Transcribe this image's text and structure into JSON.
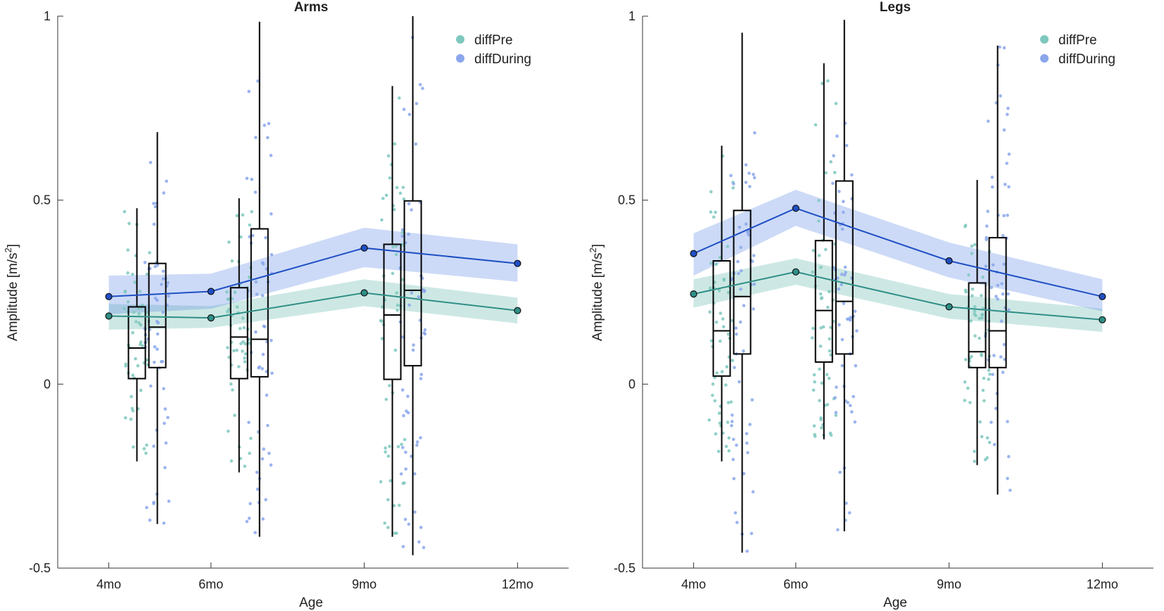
{
  "chart_data": [
    {
      "type": "line",
      "title": "Arms",
      "xlabel": "Age",
      "ylabel": "Amplitude [m/s²]",
      "ylabel_base": "Amplitude [m/s",
      "ylabel_sup": "2",
      "ylabel_close": "]",
      "categories": [
        "4mo",
        "6mo",
        "9mo",
        "12mo"
      ],
      "x": [
        4,
        6,
        9,
        12
      ],
      "xlim": [
        3,
        13
      ],
      "ylim": [
        -0.5,
        1
      ],
      "yticks": [
        -0.5,
        0,
        0.5,
        1
      ],
      "ytick_labels": [
        "-0.5",
        "0",
        "0.5",
        "1"
      ],
      "series": [
        {
          "name": "diffPre",
          "color": "#2f8f87",
          "values": [
            0.185,
            0.18,
            0.248,
            0.2
          ],
          "band_lower": [
            0.148,
            0.153,
            0.212,
            0.165
          ],
          "band_upper": [
            0.218,
            0.212,
            0.285,
            0.235
          ]
        },
        {
          "name": "diffDuring",
          "color": "#1f4fc4",
          "values": [
            0.238,
            0.252,
            0.37,
            0.328
          ],
          "band_lower": [
            0.19,
            0.205,
            0.318,
            0.278
          ],
          "band_upper": [
            0.295,
            0.3,
            0.425,
            0.38
          ]
        }
      ],
      "boxes": [
        {
          "x": 4.55,
          "group": "diffPre",
          "whisker_low": -0.21,
          "q1": 0.015,
          "median": 0.098,
          "q3": 0.21,
          "whisker_high": 0.478
        },
        {
          "x": 4.95,
          "group": "diffDuring",
          "whisker_low": -0.38,
          "q1": 0.045,
          "median": 0.155,
          "q3": 0.328,
          "whisker_high": 0.685
        },
        {
          "x": 6.55,
          "group": "diffPre",
          "whisker_low": -0.24,
          "q1": 0.015,
          "median": 0.128,
          "q3": 0.262,
          "whisker_high": 0.505
        },
        {
          "x": 6.95,
          "group": "diffDuring",
          "whisker_low": -0.415,
          "q1": 0.02,
          "median": 0.122,
          "q3": 0.422,
          "whisker_high": 0.985
        },
        {
          "x": 9.55,
          "group": "diffPre",
          "whisker_low": -0.415,
          "q1": 0.013,
          "median": 0.188,
          "q3": 0.38,
          "whisker_high": 0.81
        },
        {
          "x": 9.95,
          "group": "diffDuring",
          "whisker_low": -0.465,
          "q1": 0.05,
          "median": 0.255,
          "q3": 0.498,
          "whisker_high": 1.0
        }
      ],
      "legend": [
        "diffPre",
        "diffDuring"
      ],
      "legend_position": "top-right"
    },
    {
      "type": "line",
      "title": "Legs",
      "xlabel": "Age",
      "ylabel": "Amplitude [m/s²]",
      "ylabel_base": "Amplitude [m/s",
      "ylabel_sup": "2",
      "ylabel_close": "]",
      "categories": [
        "4mo",
        "6mo",
        "9mo",
        "12mo"
      ],
      "x": [
        4,
        6,
        9,
        12
      ],
      "xlim": [
        3,
        13
      ],
      "ylim": [
        -0.5,
        1
      ],
      "yticks": [
        -0.5,
        0,
        0.5,
        1
      ],
      "ytick_labels": [
        "-0.5",
        "0",
        "0.5",
        "1"
      ],
      "series": [
        {
          "name": "diffPre",
          "color": "#2f8f87",
          "values": [
            0.245,
            0.305,
            0.21,
            0.175
          ],
          "band_lower": [
            0.208,
            0.27,
            0.178,
            0.142
          ],
          "band_upper": [
            0.285,
            0.342,
            0.245,
            0.205
          ]
        },
        {
          "name": "diffDuring",
          "color": "#1f4fc4",
          "values": [
            0.355,
            0.478,
            0.335,
            0.238
          ],
          "band_lower": [
            0.295,
            0.43,
            0.29,
            0.198
          ],
          "band_upper": [
            0.41,
            0.528,
            0.385,
            0.285
          ]
        }
      ],
      "boxes": [
        {
          "x": 4.55,
          "group": "diffPre",
          "whisker_low": -0.21,
          "q1": 0.022,
          "median": 0.145,
          "q3": 0.335,
          "whisker_high": 0.648
        },
        {
          "x": 4.95,
          "group": "diffDuring",
          "whisker_low": -0.458,
          "q1": 0.082,
          "median": 0.238,
          "q3": 0.472,
          "whisker_high": 0.955
        },
        {
          "x": 6.55,
          "group": "diffPre",
          "whisker_low": -0.15,
          "q1": 0.06,
          "median": 0.2,
          "q3": 0.39,
          "whisker_high": 0.872
        },
        {
          "x": 6.95,
          "group": "diffDuring",
          "whisker_low": -0.4,
          "q1": 0.082,
          "median": 0.225,
          "q3": 0.552,
          "whisker_high": 0.99
        },
        {
          "x": 9.55,
          "group": "diffPre",
          "whisker_low": -0.22,
          "q1": 0.045,
          "median": 0.088,
          "q3": 0.275,
          "whisker_high": 0.555
        },
        {
          "x": 9.95,
          "group": "diffDuring",
          "whisker_low": -0.3,
          "q1": 0.045,
          "median": 0.145,
          "q3": 0.398,
          "whisker_high": 0.92
        }
      ],
      "legend": [
        "diffPre",
        "diffDuring"
      ],
      "legend_position": "top-right"
    }
  ]
}
